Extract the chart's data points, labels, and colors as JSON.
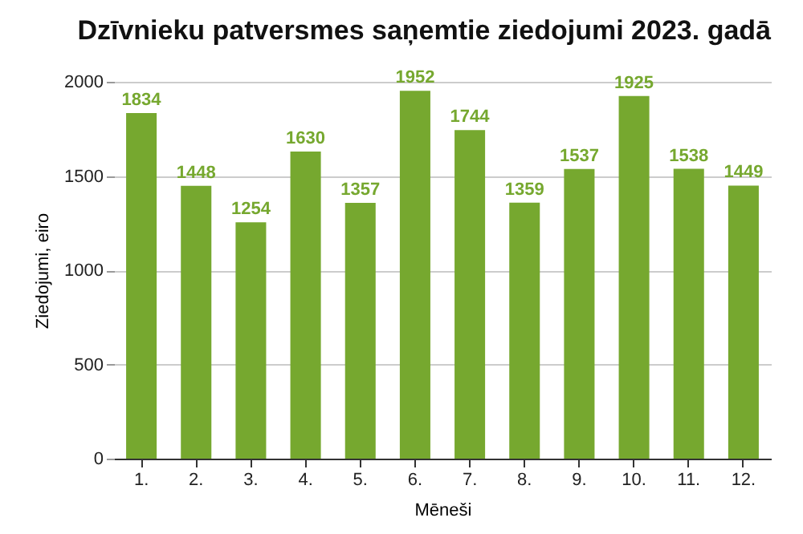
{
  "chart_data": {
    "type": "bar",
    "title": "Dzīvnieku patversmes saņemtie ziedojumi 2023. gadā",
    "xlabel": "Mēneši",
    "ylabel": "Ziedojumi, eiro",
    "categories": [
      "1.",
      "2.",
      "3.",
      "4.",
      "5.",
      "6.",
      "7.",
      "8.",
      "9.",
      "10.",
      "11.",
      "12."
    ],
    "values": [
      1834,
      1448,
      1254,
      1630,
      1357,
      1952,
      1744,
      1359,
      1537,
      1925,
      1538,
      1449
    ],
    "color": "#76a82f",
    "ylim": [
      0,
      2000
    ],
    "yticks": [
      0,
      500,
      1000,
      1500,
      2000
    ],
    "grid": "y",
    "data_labels": true
  }
}
